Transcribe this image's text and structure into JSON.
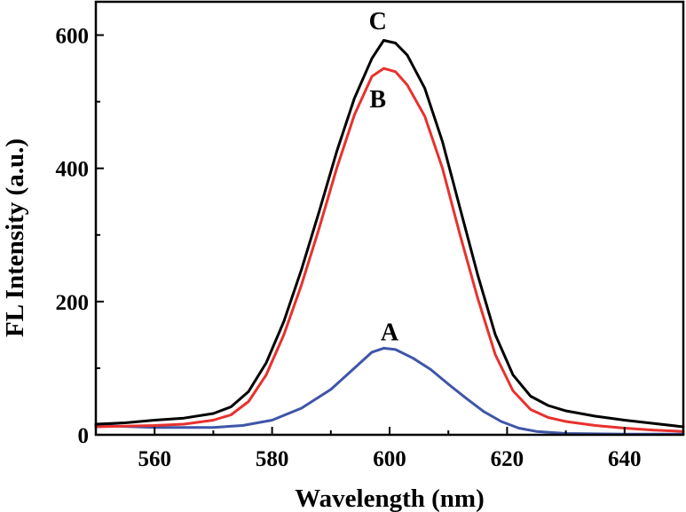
{
  "chart_data": {
    "type": "line",
    "xlabel": "Wavelength (nm)",
    "ylabel": "FL Intensity (a.u.)",
    "xlim": [
      550,
      650
    ],
    "ylim": [
      0,
      650
    ],
    "x_ticks": [
      560,
      580,
      600,
      620,
      640
    ],
    "y_ticks": [
      0,
      200,
      400,
      600
    ],
    "grid": false,
    "legend": "none",
    "series": [
      {
        "name": "A",
        "color": "#3f55a8",
        "points": [
          [
            550,
            14
          ],
          [
            560,
            11
          ],
          [
            570,
            11
          ],
          [
            575,
            14
          ],
          [
            580,
            22
          ],
          [
            585,
            40
          ],
          [
            590,
            68
          ],
          [
            594,
            100
          ],
          [
            597,
            124
          ],
          [
            599,
            130
          ],
          [
            601,
            128
          ],
          [
            604,
            115
          ],
          [
            607,
            98
          ],
          [
            610,
            76
          ],
          [
            613,
            55
          ],
          [
            616,
            35
          ],
          [
            619,
            20
          ],
          [
            622,
            10
          ],
          [
            625,
            5
          ],
          [
            630,
            2
          ],
          [
            640,
            1
          ],
          [
            650,
            1
          ]
        ]
      },
      {
        "name": "B",
        "color": "#e8312e",
        "points": [
          [
            550,
            12
          ],
          [
            555,
            13
          ],
          [
            560,
            14
          ],
          [
            565,
            16
          ],
          [
            570,
            22
          ],
          [
            573,
            30
          ],
          [
            576,
            50
          ],
          [
            579,
            90
          ],
          [
            582,
            150
          ],
          [
            585,
            225
          ],
          [
            588,
            310
          ],
          [
            591,
            400
          ],
          [
            594,
            480
          ],
          [
            597,
            538
          ],
          [
            599,
            550
          ],
          [
            601,
            545
          ],
          [
            603,
            525
          ],
          [
            606,
            478
          ],
          [
            609,
            400
          ],
          [
            612,
            300
          ],
          [
            615,
            205
          ],
          [
            618,
            120
          ],
          [
            621,
            66
          ],
          [
            624,
            38
          ],
          [
            627,
            26
          ],
          [
            630,
            20
          ],
          [
            635,
            14
          ],
          [
            640,
            10
          ],
          [
            645,
            7
          ],
          [
            650,
            5
          ]
        ]
      },
      {
        "name": "C",
        "color": "#000000",
        "points": [
          [
            550,
            16
          ],
          [
            555,
            18
          ],
          [
            560,
            22
          ],
          [
            565,
            25
          ],
          [
            570,
            32
          ],
          [
            573,
            42
          ],
          [
            576,
            65
          ],
          [
            579,
            108
          ],
          [
            582,
            170
          ],
          [
            585,
            248
          ],
          [
            588,
            335
          ],
          [
            591,
            425
          ],
          [
            594,
            505
          ],
          [
            597,
            565
          ],
          [
            599,
            592
          ],
          [
            601,
            588
          ],
          [
            603,
            570
          ],
          [
            606,
            520
          ],
          [
            609,
            440
          ],
          [
            612,
            340
          ],
          [
            615,
            240
          ],
          [
            618,
            150
          ],
          [
            621,
            90
          ],
          [
            624,
            58
          ],
          [
            627,
            44
          ],
          [
            630,
            36
          ],
          [
            635,
            28
          ],
          [
            640,
            22
          ],
          [
            645,
            17
          ],
          [
            650,
            12
          ]
        ]
      }
    ],
    "annotations": [
      {
        "text": "A",
        "x": 600,
        "y": 155
      },
      {
        "text": "B",
        "x": 598,
        "y": 505
      },
      {
        "text": "C",
        "x": 598,
        "y": 622
      }
    ]
  }
}
